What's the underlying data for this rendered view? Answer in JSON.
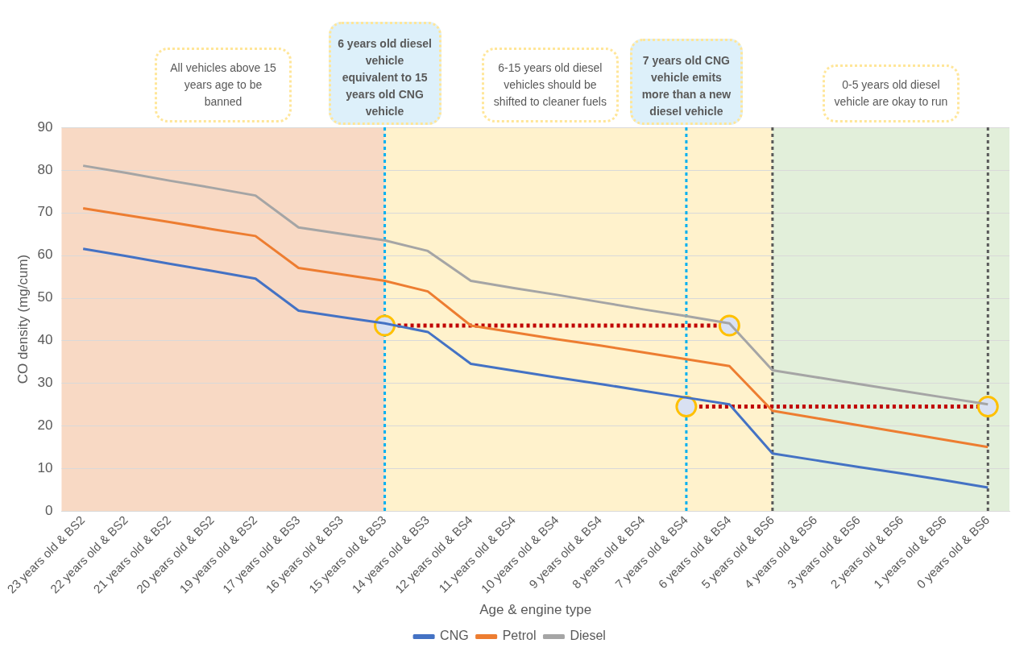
{
  "chart_data": {
    "type": "line",
    "xlabel": "Age & engine type",
    "ylabel": "CO density (mg/cum)",
    "categories": [
      "23 years old & BS2",
      "22 years old & BS2",
      "21 years old & BS2",
      "20 years old & BS2",
      "19 years old & BS2",
      "17 years old & BS3",
      "16 years old & BS3",
      "15 years old & BS3",
      "14 years old & BS3",
      "12 years old & BS4",
      "11 years old & BS4",
      "10 years old & BS4",
      "9 years old & BS4",
      "8 years old & BS4",
      "7 years old & BS4",
      "6 years old & BS4",
      "5 years old & BS6",
      "4 years old & BS6",
      "3 years old & BS6",
      "2 years old & BS6",
      "1 years old & BS6",
      "0 years old & BS6"
    ],
    "series": [
      {
        "name": "CNG",
        "color": "#4472c4",
        "values": [
          61.5,
          59.8,
          58,
          56.3,
          54.5,
          47,
          45.5,
          44,
          42,
          34.5,
          32.9,
          31.3,
          29.8,
          28.2,
          26.6,
          25,
          13.5,
          11.9,
          10.3,
          8.8,
          7.2,
          5.5
        ]
      },
      {
        "name": "Petrol",
        "color": "#ed7d31",
        "values": [
          71,
          69.4,
          67.8,
          66.1,
          64.5,
          57,
          55.5,
          54,
          51.5,
          43.5,
          41.9,
          40.3,
          38.8,
          37.2,
          35.6,
          34,
          23.5,
          21.8,
          20.1,
          18.4,
          16.7,
          15
        ]
      },
      {
        "name": "Diesel",
        "color": "#a5a5a5",
        "values": [
          81,
          79.3,
          77.5,
          75.8,
          74,
          66.5,
          65,
          63.5,
          61,
          54,
          52.3,
          50.7,
          49,
          47.3,
          45.7,
          44,
          33,
          31.4,
          29.8,
          28.2,
          26.6,
          25
        ]
      },
      {
        "type": "line",
        "color": "#c00000",
        "line_style": "dotted",
        "marker": "circle",
        "x": [
          "15 years old & BS3",
          "6 years old & BS4"
        ],
        "values": [
          43.5,
          43.5
        ]
      },
      {
        "type": "line",
        "color": "#c00000",
        "line_style": "dotted",
        "marker": "circle",
        "x": [
          "7 years old & BS4",
          "0 years old & BS6"
        ],
        "values": [
          24.5,
          24.5
        ]
      }
    ],
    "ylim": [
      0,
      90
    ],
    "yticks": [
      0,
      10,
      20,
      30,
      40,
      50,
      60,
      70,
      80,
      90
    ],
    "grid": "y",
    "legend": "bottom",
    "marker": "none",
    "line_style": "solid",
    "bands": [
      {
        "axis": "x",
        "from": "23 years old & BS2",
        "to": "15 years old & BS3",
        "color": "#f8d9c4",
        "label": "All vehicles above 15 years age to be banned"
      },
      {
        "axis": "x",
        "from": "15 years old & BS3",
        "to": "5 years old & BS6",
        "color": "#fff2cc",
        "label": "6-15 years old diesel vehicles should be shifted to cleaner fuels"
      },
      {
        "axis": "x",
        "from": "5 years old & BS6",
        "to": "0 years old & BS6",
        "color": "#e2efda",
        "label": "0-5 years old diesel vehicle are okay to run"
      }
    ],
    "ref_lines": [
      {
        "axis": "x",
        "value": "15 years old & BS3",
        "color": "#00b0f0",
        "line_style": "dotted"
      },
      {
        "axis": "x",
        "value": "7 years old & BS4",
        "color": "#00b0f0",
        "line_style": "dotted"
      },
      {
        "axis": "x",
        "value": "5 years old & BS6",
        "color": "#595959",
        "line_style": "dotted"
      },
      {
        "axis": "x",
        "value": "0 years old & BS6",
        "color": "#595959",
        "line_style": "dotted"
      }
    ],
    "annotations": [
      "6 years old diesel vehicle equivalent to 15 years old CNG vehicle",
      "7 years old CNG vehicle emits more than a new diesel vehicle"
    ]
  }
}
